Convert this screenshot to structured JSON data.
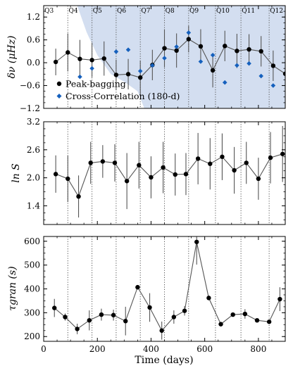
{
  "chart_data": [
    {
      "type": "line",
      "ylabel": "δν (μHz)",
      "xlim": [
        0,
        900
      ],
      "ylim": [
        -1.2,
        1.5
      ],
      "yticks": [
        -1.2,
        -0.6,
        0.0,
        0.6,
        1.2
      ],
      "ytick_labels": [
        "−1.2",
        "−0.6",
        "0.0",
        "0.6",
        "1.2"
      ],
      "quarter_boundaries": [
        90,
        180,
        270,
        360,
        450,
        540,
        640,
        735,
        840
      ],
      "quarter_labels": [
        "Q3",
        "Q4",
        "Q5",
        "Q6",
        "Q7",
        "Q8",
        "Q9",
        "Q10",
        "Q11",
        "Q12"
      ],
      "quarter_label_x": [
        3,
        93,
        183,
        273,
        363,
        453,
        543,
        643,
        738,
        843
      ],
      "shaded_region": [
        [
          125,
          1.5
        ],
        [
          900,
          1.5
        ],
        [
          900,
          -1.2
        ],
        [
          375,
          -1.2
        ],
        [
          350,
          -0.75
        ],
        [
          300,
          -0.5
        ],
        [
          250,
          -0.3
        ],
        [
          200,
          0.2
        ],
        [
          160,
          0.8
        ],
        [
          140,
          1.2
        ],
        [
          125,
          1.5
        ]
      ],
      "legend": {
        "position": "lower-left",
        "entries": [
          "Peak-bagging",
          "Cross-Correlation (180-d)"
        ]
      },
      "series": [
        {
          "name": "Peak-bagging",
          "color": "#000000",
          "marker": "circle",
          "x": [
            45,
            90,
            135,
            180,
            225,
            270,
            315,
            360,
            405,
            450,
            495,
            540,
            585,
            630,
            675,
            720,
            765,
            810,
            855,
            900
          ],
          "y": [
            0.02,
            0.27,
            0.1,
            0.07,
            0.11,
            -0.32,
            -0.3,
            -0.39,
            -0.06,
            0.38,
            0.32,
            0.62,
            0.43,
            -0.2,
            0.44,
            0.31,
            0.35,
            0.3,
            -0.08,
            -0.29
          ],
          "yerr": [
            0.35,
            0.5,
            0.5,
            0.45,
            0.45,
            0.4,
            0.4,
            0.45,
            0.4,
            0.5,
            0.45,
            0.35,
            0.45,
            0.45,
            0.4,
            0.45,
            0.4,
            0.4,
            0.4,
            0.4
          ]
        },
        {
          "name": "Cross-Correlation (180-d)",
          "color": "#1560bd",
          "marker": "diamond",
          "x": [
            135,
            180,
            270,
            315,
            360,
            405,
            450,
            495,
            540,
            585,
            630,
            675,
            720,
            765,
            810,
            855
          ],
          "y": [
            -0.37,
            -0.15,
            0.29,
            0.34,
            -0.22,
            -0.07,
            0.12,
            0.42,
            0.79,
            0.03,
            0.2,
            -0.52,
            -0.07,
            -0.02,
            -0.35,
            -0.6
          ]
        }
      ]
    },
    {
      "type": "line",
      "ylabel": "ln S",
      "xlim": [
        0,
        900
      ],
      "ylim": [
        1.0,
        3.2
      ],
      "yticks": [
        1.4,
        2.0,
        2.6,
        3.2
      ],
      "ytick_labels": [
        "1.4",
        "2.0",
        "2.6",
        "3.2"
      ],
      "series": [
        {
          "name": "",
          "color": "#000000",
          "marker": "circle",
          "x": [
            45,
            90,
            130,
            175,
            220,
            265,
            310,
            355,
            400,
            445,
            490,
            530,
            575,
            620,
            665,
            710,
            755,
            800,
            845,
            890
          ],
          "y": [
            2.08,
            1.98,
            1.6,
            2.32,
            2.35,
            2.32,
            1.93,
            2.27,
            2.01,
            2.22,
            2.07,
            2.08,
            2.41,
            2.3,
            2.45,
            2.16,
            2.32,
            1.98,
            2.43,
            2.51
          ],
          "yerr": [
            0.4,
            0.5,
            0.45,
            0.45,
            0.35,
            0.4,
            0.6,
            0.5,
            0.45,
            0.55,
            0.45,
            0.45,
            0.55,
            0.55,
            0.5,
            0.5,
            0.45,
            0.45,
            0.55,
            0.6
          ]
        }
      ]
    },
    {
      "type": "line",
      "ylabel": "τgran (s)",
      "xlabel": "Time (days)",
      "xlim": [
        0,
        900
      ],
      "ylim": [
        180,
        620
      ],
      "xticks": [
        0,
        200,
        400,
        600,
        800
      ],
      "xtick_labels": [
        "0",
        "200",
        "400",
        "600",
        "800"
      ],
      "yticks": [
        200,
        300,
        400,
        500,
        600
      ],
      "ytick_labels": [
        "200",
        "300",
        "400",
        "500",
        "600"
      ],
      "series": [
        {
          "name": "",
          "color": "#000000",
          "marker": "circle",
          "x": [
            40,
            80,
            125,
            170,
            215,
            260,
            305,
            350,
            395,
            440,
            485,
            525,
            570,
            615,
            660,
            705,
            750,
            795,
            840,
            880
          ],
          "y": [
            320,
            282,
            232,
            268,
            292,
            290,
            265,
            407,
            322,
            225,
            282,
            308,
            597,
            362,
            252,
            292,
            295,
            268,
            262,
            357
          ],
          "yerr": [
            38,
            15,
            22,
            42,
            25,
            23,
            60,
            0,
            60,
            38,
            28,
            20,
            95,
            0,
            0,
            0,
            20,
            0,
            0,
            50
          ]
        }
      ]
    }
  ]
}
